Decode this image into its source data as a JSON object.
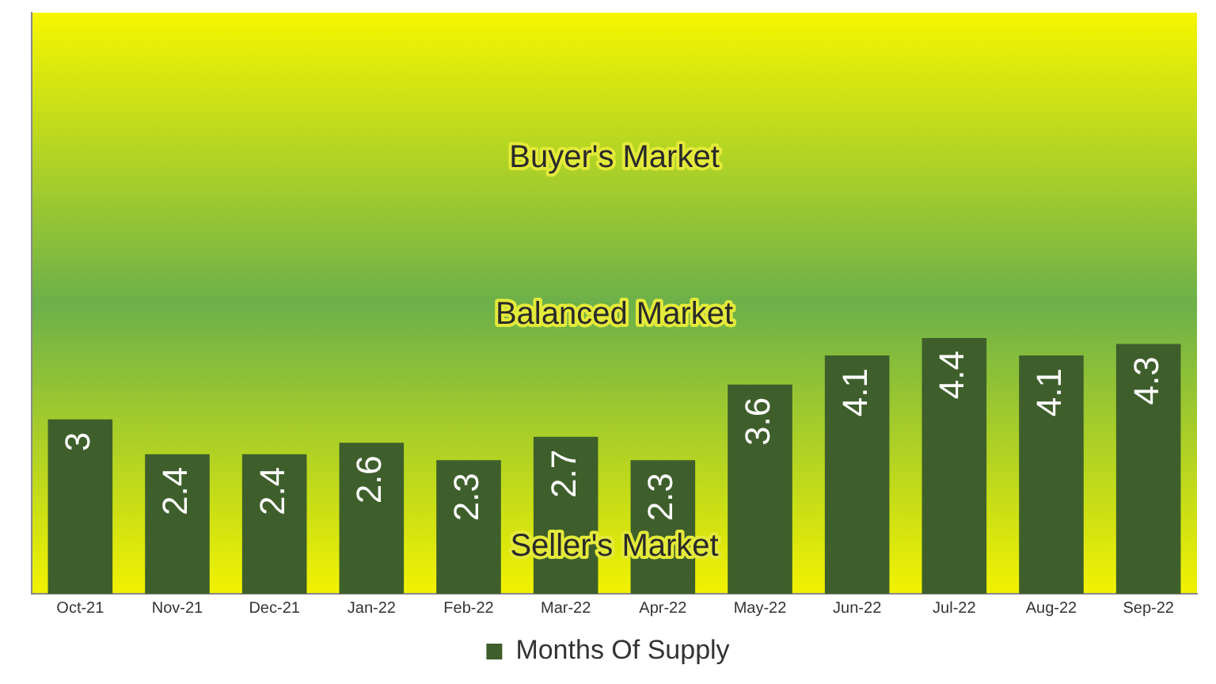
{
  "chart_data": {
    "type": "bar",
    "categories": [
      "Oct-21",
      "Nov-21",
      "Dec-21",
      "Jan-22",
      "Feb-22",
      "Mar-22",
      "Apr-22",
      "May-22",
      "Jun-22",
      "Jul-22",
      "Aug-22",
      "Sep-22"
    ],
    "series": [
      {
        "name": "Months Of Supply",
        "color": "#3e5f2b",
        "values": [
          3,
          2.4,
          2.4,
          2.6,
          2.3,
          2.7,
          2.3,
          3.6,
          4.1,
          4.4,
          4.1,
          4.3
        ]
      }
    ],
    "ylim": [
      0,
      10
    ],
    "tick_labels": "x",
    "data_labels": true,
    "legend": "bottom",
    "grid": false,
    "annotations": [
      "Buyer's Market",
      "Balanced Market",
      "Seller's Market"
    ]
  }
}
